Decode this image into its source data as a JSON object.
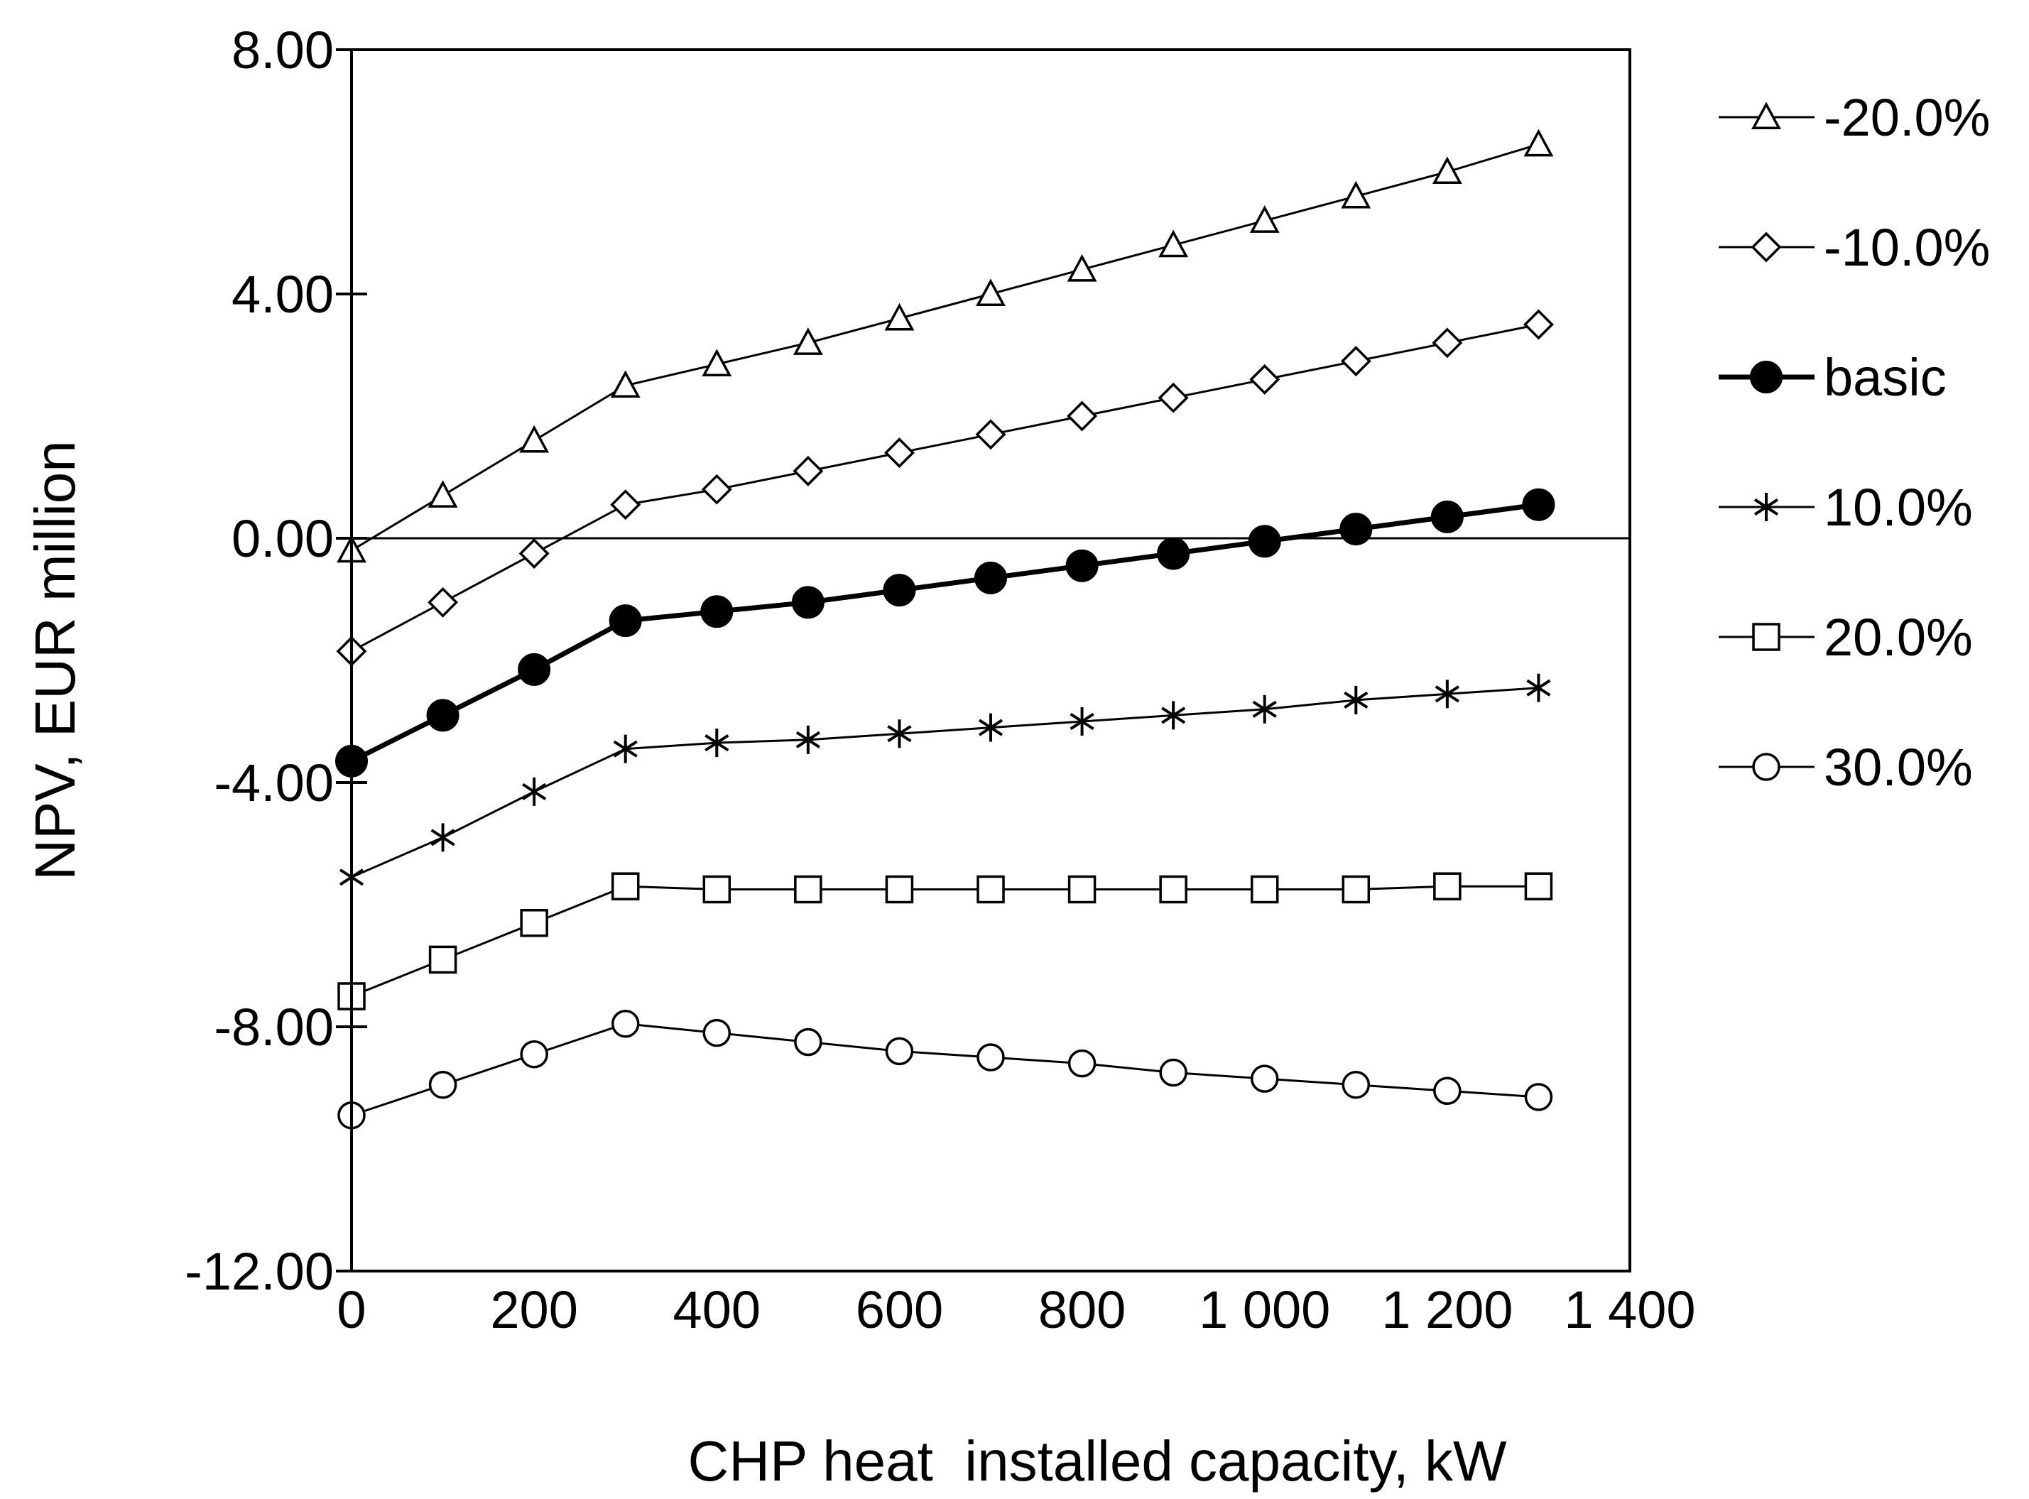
{
  "chart_data": {
    "type": "line",
    "title": "",
    "xlabel": "CHP heat  installed capacity, kW",
    "ylabel": "NPV, EUR million",
    "xlim": [
      0,
      1400
    ],
    "ylim": [
      -12,
      8
    ],
    "x_ticks": [
      0,
      200,
      400,
      600,
      800,
      1000,
      1200,
      1400
    ],
    "x_tick_labels": [
      "0",
      "200",
      "400",
      "600",
      "800",
      "1 000",
      "1 200",
      "1 400"
    ],
    "y_ticks": [
      8,
      4,
      0,
      -4,
      -8,
      -12
    ],
    "y_tick_labels": [
      "8.00",
      "4.00",
      "0.00",
      "-4.00",
      "-8.00",
      "-12.00"
    ],
    "grid": false,
    "legend_position": "right",
    "x": [
      0,
      100,
      200,
      300,
      400,
      500,
      600,
      700,
      800,
      900,
      1000,
      1100,
      1200,
      1300
    ],
    "series": [
      {
        "name": "-20.0%",
        "marker": "triangle",
        "line_weight": "thin",
        "values": [
          -0.2,
          0.7,
          1.6,
          2.5,
          2.85,
          3.2,
          3.6,
          4.0,
          4.4,
          4.8,
          5.2,
          5.6,
          6.0,
          6.45
        ]
      },
      {
        "name": "-10.0%",
        "marker": "diamond",
        "line_weight": "thin",
        "values": [
          -1.85,
          -1.05,
          -0.25,
          0.55,
          0.8,
          1.1,
          1.4,
          1.7,
          2.0,
          2.3,
          2.6,
          2.9,
          3.2,
          3.5
        ]
      },
      {
        "name": "basic",
        "marker": "filled-circle",
        "line_weight": "bold",
        "values": [
          -3.65,
          -2.9,
          -2.15,
          -1.35,
          -1.2,
          -1.05,
          -0.85,
          -0.65,
          -0.45,
          -0.25,
          -0.05,
          0.15,
          0.35,
          0.55
        ]
      },
      {
        "name": "10.0%",
        "marker": "star",
        "line_weight": "thin",
        "values": [
          -5.55,
          -4.9,
          -4.15,
          -3.45,
          -3.35,
          -3.3,
          -3.2,
          -3.1,
          -3.0,
          -2.9,
          -2.8,
          -2.65,
          -2.55,
          -2.45
        ]
      },
      {
        "name": "20.0%",
        "marker": "square",
        "line_weight": "thin",
        "values": [
          -7.5,
          -6.9,
          -6.3,
          -5.7,
          -5.75,
          -5.75,
          -5.75,
          -5.75,
          -5.75,
          -5.75,
          -5.75,
          -5.75,
          -5.7,
          -5.7
        ]
      },
      {
        "name": "30.0%",
        "marker": "circle",
        "line_weight": "thin",
        "values": [
          -9.45,
          -8.95,
          -8.45,
          -7.95,
          -8.1,
          -8.25,
          -8.4,
          -8.5,
          -8.6,
          -8.75,
          -8.85,
          -8.95,
          -9.05,
          -9.15
        ]
      }
    ]
  }
}
